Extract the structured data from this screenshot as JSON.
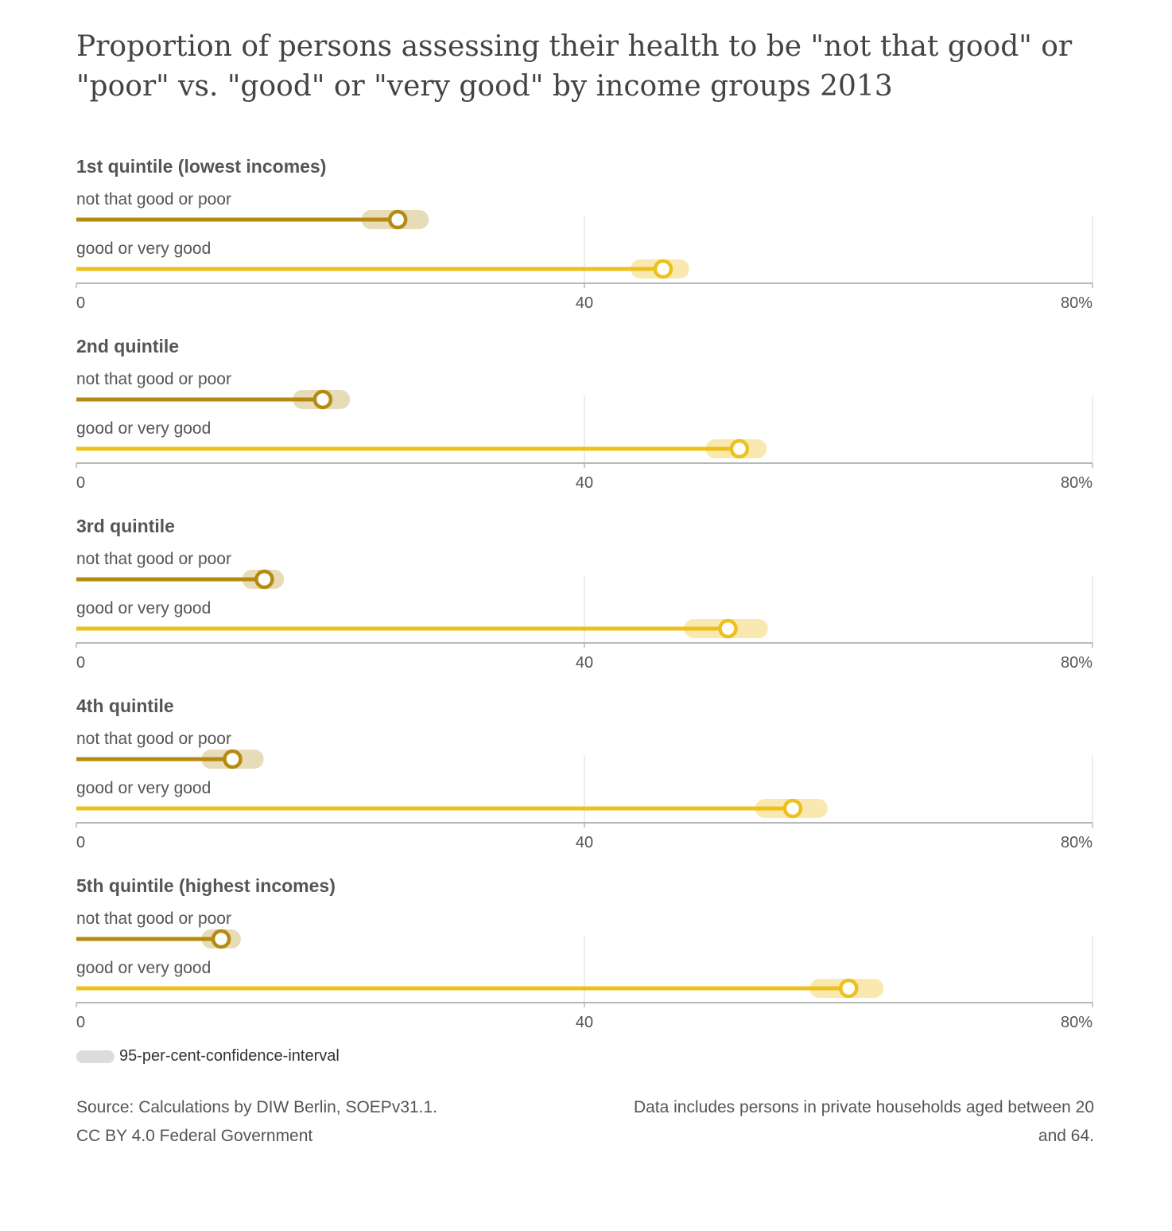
{
  "title": "Proportion of persons assessing their health to be \"not that good\" or \"poor\" vs. \"good\" or \"very good\" by income groups 2013",
  "colors": {
    "poor": "#b58a10",
    "poor_ci": "#e8dcb8",
    "good": "#eec01c",
    "good_ci": "#f9e9b0",
    "axis": "#b8b8b8",
    "grid": "#e6e6e6"
  },
  "chart_data": {
    "type": "dot",
    "xlim": [
      0,
      80
    ],
    "ticks": [
      "0",
      "40",
      "80%"
    ],
    "tick_values": [
      0,
      40,
      80
    ],
    "series_labels": [
      "not that good or poor",
      "good or very good"
    ],
    "groups": [
      {
        "name": "1st quintile (lowest incomes)",
        "poor": {
          "value": 25.3,
          "ci": [
            23.2,
            27.0
          ]
        },
        "good": {
          "value": 46.2,
          "ci": [
            44.4,
            47.5
          ]
        }
      },
      {
        "name": "2nd quintile",
        "poor": {
          "value": 19.4,
          "ci": [
            17.8,
            20.8
          ]
        },
        "good": {
          "value": 52.2,
          "ci": [
            50.3,
            53.6
          ]
        }
      },
      {
        "name": "3rd quintile",
        "poor": {
          "value": 14.8,
          "ci": [
            13.8,
            15.6
          ]
        },
        "good": {
          "value": 51.3,
          "ci": [
            48.6,
            53.7
          ]
        }
      },
      {
        "name": "4th quintile",
        "poor": {
          "value": 12.3,
          "ci": [
            10.6,
            14.0
          ]
        },
        "good": {
          "value": 56.4,
          "ci": [
            54.2,
            58.4
          ]
        }
      },
      {
        "name": "5th quintile (highest incomes)",
        "poor": {
          "value": 11.4,
          "ci": [
            10.6,
            12.2
          ]
        },
        "good": {
          "value": 60.8,
          "ci": [
            58.5,
            62.8
          ]
        }
      }
    ]
  },
  "legend": {
    "label": "95-per-cent-confidence-interval"
  },
  "footer": {
    "source_line1": "Source: Calculations by DIW Berlin, SOEPv31.1.",
    "source_line2": "CC BY 4.0 Federal Government",
    "note_line1": "Data includes persons in private households aged between 20",
    "note_line2": "and 64."
  }
}
